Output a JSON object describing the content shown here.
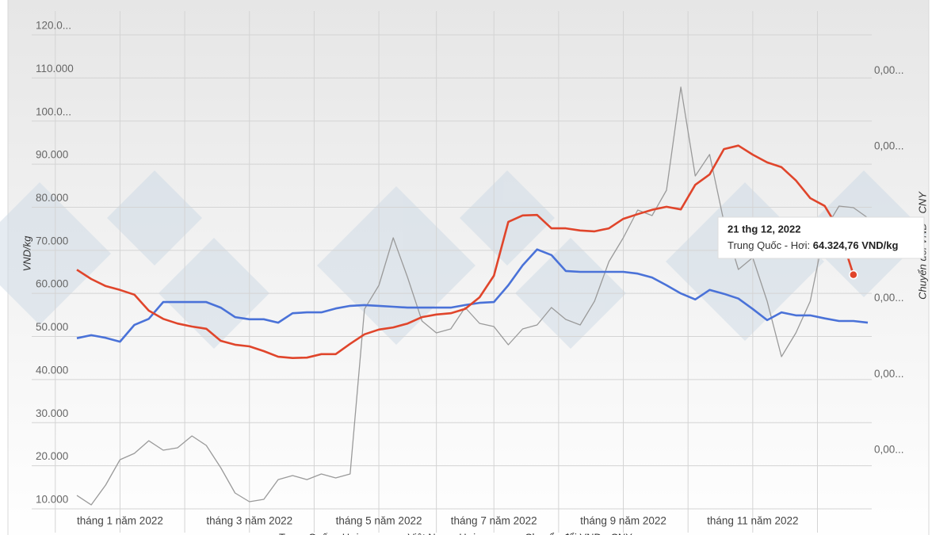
{
  "chart_data": {
    "type": "line",
    "ylabel": "VND/kg",
    "y2label": "Chuyển đổi VND - CNY",
    "categories": [
      null,
      null,
      null,
      "tháng 1 năm 2022",
      null,
      null,
      null,
      null,
      null,
      null,
      null,
      null,
      "tháng 3 năm 2022",
      null,
      null,
      null,
      null,
      null,
      null,
      null,
      null,
      "tháng 5 năm 2022",
      null,
      null,
      null,
      null,
      null,
      null,
      null,
      "tháng 7 năm 2022",
      null,
      null,
      null,
      null,
      null,
      null,
      null,
      null,
      "tháng 9 năm 2022",
      null,
      null,
      null,
      null,
      null,
      null,
      null,
      null,
      "tháng 11 năm 2022",
      null,
      null,
      null,
      null,
      null,
      null,
      null,
      null
    ],
    "series": [
      {
        "name": "Trung Quốc - Hơi",
        "color": "#e0452b",
        "values": [
          65500,
          63350,
          61700,
          60800,
          59700,
          56000,
          54100,
          53000,
          52300,
          51800,
          49000,
          48100,
          47700,
          46600,
          45300,
          45000,
          45100,
          45900,
          45900,
          48300,
          50500,
          51600,
          52100,
          53000,
          54500,
          55100,
          55400,
          56400,
          59100,
          64100,
          76600,
          78100,
          78200,
          75100,
          75100,
          74600,
          74400,
          75100,
          77300,
          78400,
          79400,
          80100,
          79500,
          85200,
          87600,
          93500,
          94300,
          92200,
          90400,
          89300,
          86200,
          82100,
          80300,
          74800,
          64324.76,
          null
        ]
      },
      {
        "name": "Việt Nam - Hơi",
        "color": "#4a72d8",
        "values": [
          49600,
          50300,
          49700,
          48800,
          52700,
          54100,
          58000,
          58000,
          58000,
          58000,
          56700,
          54500,
          54000,
          54000,
          53200,
          55400,
          55600,
          55600,
          56500,
          57100,
          57300,
          57100,
          56900,
          56700,
          56700,
          56700,
          56700,
          57300,
          57800,
          58000,
          61900,
          66500,
          70200,
          68900,
          65200,
          65000,
          65000,
          65000,
          65000,
          64600,
          63700,
          61900,
          60000,
          58600,
          60800,
          59900,
          58800,
          56400,
          53800,
          55600,
          54900,
          54900,
          54200,
          53600,
          53600,
          53200
        ]
      },
      {
        "name": "Chuyển đổi VND - CNY",
        "color": "#9a9a9a",
        "axis": "y2",
        "values": [
          0.00027404,
          0.00027279,
          0.0002754,
          0.00027875,
          0.00027958,
          0.00028125,
          0.00028,
          0.00028031,
          0.00028188,
          0.00028063,
          0.0002777,
          0.00027436,
          0.00027321,
          0.00027352,
          0.00027613,
          0.00027666,
          0.00027613,
          0.00027687,
          0.00027634,
          0.00027687,
          0.0002986,
          0.00030173,
          0.000308,
          0.00030278,
          0.00029703,
          0.00029547,
          0.00029599,
          0.00029881,
          0.00029672,
          0.0002963,
          0.0002939,
          0.00029599,
          0.00029651,
          0.00029881,
          0.00029724,
          0.00029651,
          0.00029964,
          0.00030487,
          0.000308,
          0.00031166,
          0.00031093,
          0.00031427,
          0.00032786,
          0.00031615,
          0.00031898,
          0.00031009,
          0.00030382,
          0.00030539,
          0.00029964,
          0.00029233,
          0.00029547,
          0.00029964,
          0.00030905,
          0.00031218,
          0.00031197,
          0.00031062
        ]
      }
    ],
    "ylim": [
      10000,
      120000
    ],
    "yticks": [
      {
        "value": 10000,
        "label": "10.000"
      },
      {
        "value": 20000,
        "label": "20.000"
      },
      {
        "value": 30000,
        "label": "30.000"
      },
      {
        "value": 40000,
        "label": "40.000"
      },
      {
        "value": 50000,
        "label": "50.000"
      },
      {
        "value": 60000,
        "label": "60.000"
      },
      {
        "value": 70000,
        "label": "70.000"
      },
      {
        "value": 80000,
        "label": "80.000"
      },
      {
        "value": 90000,
        "label": "90.000"
      },
      {
        "value": 100000,
        "label": "100.0..."
      },
      {
        "value": 110000,
        "label": "110.000"
      },
      {
        "value": 120000,
        "label": "120.0..."
      }
    ],
    "y2lim": [
      0.00027227,
      0.00033475
    ],
    "y2ticks": [
      {
        "value": 0.00028,
        "label": "0,00..."
      },
      {
        "value": 0.00029,
        "label": "0,00..."
      },
      {
        "value": 0.0003,
        "label": "0,00..."
      },
      {
        "value": 0.00032,
        "label": "0,00..."
      },
      {
        "value": 0.00033,
        "label": "0,00..."
      }
    ],
    "grid": true,
    "tooltip": {
      "date": "21 thg 12, 2022",
      "label": "Trung Quốc - Hơi:",
      "value_label": "64.324,76 VND/kg"
    }
  }
}
